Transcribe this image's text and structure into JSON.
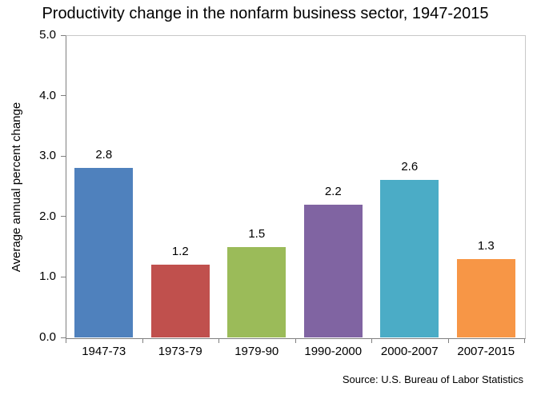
{
  "chart_data": {
    "type": "bar",
    "title": "Productivity change in the nonfarm business sector,  1947-2015",
    "categories": [
      "1947-73",
      "1973-79",
      "1979-90",
      "1990-2000",
      "2000-2007",
      "2007-2015"
    ],
    "values": [
      2.8,
      1.2,
      1.5,
      2.2,
      2.6,
      1.3
    ],
    "data_labels": [
      "2.8",
      "1.2",
      "1.5",
      "2.2",
      "2.6",
      "1.3"
    ],
    "bar_colors": [
      "#4F81BD",
      "#C0504D",
      "#9BBB59",
      "#8064A2",
      "#4BACC6",
      "#F79646"
    ],
    "xlabel": "",
    "ylabel": "Average annual percent change",
    "ylim": [
      0.0,
      5.0
    ],
    "ytick_labels": [
      "0.0",
      "1.0",
      "2.0",
      "3.0",
      "4.0",
      "5.0"
    ],
    "grid": false,
    "legend_position": "none",
    "source_note": "Source: U.S. Bureau of Labor Statistics"
  },
  "colors": {
    "axis_line": "#7f7f7f",
    "plot_border": "#c8c8c8",
    "text": "#000000",
    "background": "#ffffff"
  }
}
